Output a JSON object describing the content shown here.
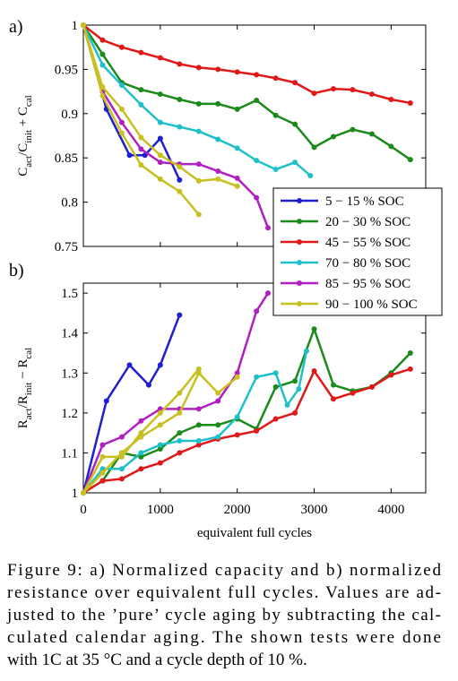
{
  "chart_data": [
    {
      "type": "line",
      "label": "a)",
      "ylabel": [
        "C",
        "act",
        "/C",
        "init",
        " + C",
        "cal"
      ],
      "xlim": [
        0,
        4450
      ],
      "xticks": [
        0,
        1000,
        2000,
        3000,
        4000
      ],
      "ylim": [
        0.75,
        1
      ],
      "yticks": [
        0.75,
        0.8,
        0.85,
        0.9,
        0.95,
        1
      ],
      "legend": true,
      "series": [
        {
          "name": "5 − 15 % SOC",
          "color": "#1f1fd0",
          "x": [
            0,
            300,
            600,
            800,
            1000,
            1250
          ],
          "values": [
            1,
            0.905,
            0.853,
            0.853,
            0.872,
            0.825
          ]
        },
        {
          "name": "20 − 30 % SOC",
          "color": "#1a8a1a",
          "x": [
            0,
            250,
            500,
            750,
            1000,
            1250,
            1500,
            1750,
            2000,
            2250,
            2500,
            2750,
            3000,
            3250,
            3500,
            3750,
            4000,
            4250
          ],
          "values": [
            1,
            0.967,
            0.935,
            0.927,
            0.922,
            0.916,
            0.911,
            0.911,
            0.905,
            0.915,
            0.898,
            0.888,
            0.862,
            0.874,
            0.882,
            0.877,
            0.863,
            0.848
          ]
        },
        {
          "name": "45 − 55 % SOC",
          "color": "#e01818",
          "x": [
            0,
            250,
            500,
            750,
            1000,
            1250,
            1500,
            1750,
            2000,
            2250,
            2500,
            2750,
            3000,
            3250,
            3500,
            3750,
            4000,
            4250
          ],
          "values": [
            1,
            0.983,
            0.975,
            0.969,
            0.963,
            0.956,
            0.952,
            0.95,
            0.947,
            0.944,
            0.94,
            0.935,
            0.923,
            0.928,
            0.927,
            0.922,
            0.916,
            0.912
          ]
        },
        {
          "name": "70 − 80 % SOC",
          "color": "#20c0c8",
          "x": [
            0,
            250,
            500,
            750,
            1000,
            1250,
            1500,
            1750,
            2000,
            2250,
            2500,
            2750,
            2950
          ],
          "values": [
            1,
            0.955,
            0.932,
            0.91,
            0.89,
            0.885,
            0.88,
            0.871,
            0.861,
            0.847,
            0.837,
            0.845,
            0.83
          ]
        },
        {
          "name": "85 − 95 % SOC",
          "color": "#b020c0",
          "x": [
            0,
            250,
            500,
            750,
            1000,
            1250,
            1500,
            1750,
            2000,
            2250,
            2400
          ],
          "values": [
            1,
            0.925,
            0.89,
            0.86,
            0.845,
            0.843,
            0.843,
            0.835,
            0.827,
            0.805,
            0.771
          ]
        },
        {
          "name": "90 − 100 % SOC",
          "color": "#c8c020",
          "x": [
            0,
            250,
            500,
            750,
            1000,
            1250,
            1500,
            1750,
            2000
          ],
          "values": [
            1,
            0.93,
            0.905,
            0.873,
            0.853,
            0.84,
            0.824,
            0.826,
            0.818
          ]
        },
        {
          "color": "#c8c020",
          "x": [
            0,
            250,
            500,
            750,
            1000,
            1250,
            1500
          ],
          "values": [
            1,
            0.92,
            0.878,
            0.842,
            0.826,
            0.812,
            0.786
          ]
        }
      ]
    },
    {
      "type": "line",
      "label": "b)",
      "ylabel": [
        "R",
        "act",
        "/R",
        "init",
        " − R",
        "cal"
      ],
      "xlabel": "equivalent full cycles",
      "xlim": [
        0,
        4450
      ],
      "xticks": [
        0,
        1000,
        2000,
        3000,
        4000
      ],
      "ylim": [
        1,
        1.525
      ],
      "yticks": [
        1,
        1.1,
        1.2,
        1.3,
        1.4,
        1.5
      ],
      "series": [
        {
          "color": "#1f1fd0",
          "x": [
            0,
            300,
            600,
            850,
            1000,
            1250
          ],
          "values": [
            1,
            1.23,
            1.32,
            1.27,
            1.32,
            1.445
          ]
        },
        {
          "color": "#1a8a1a",
          "x": [
            0,
            250,
            500,
            750,
            1000,
            1250,
            1500,
            1750,
            2000,
            2250,
            2500,
            2750,
            3000,
            3250,
            3500,
            3750,
            4000,
            4250
          ],
          "values": [
            1,
            1.03,
            1.1,
            1.09,
            1.11,
            1.15,
            1.17,
            1.17,
            1.185,
            1.16,
            1.265,
            1.28,
            1.41,
            1.27,
            1.255,
            1.265,
            1.3,
            1.35
          ]
        },
        {
          "color": "#e01818",
          "x": [
            0,
            250,
            500,
            750,
            1000,
            1250,
            1500,
            1750,
            2000,
            2250,
            2500,
            2750,
            3000,
            3250,
            3500,
            3750,
            4000,
            4250
          ],
          "values": [
            1,
            1.03,
            1.035,
            1.06,
            1.075,
            1.1,
            1.12,
            1.135,
            1.145,
            1.155,
            1.185,
            1.2,
            1.305,
            1.235,
            1.25,
            1.265,
            1.295,
            1.31
          ]
        },
        {
          "color": "#20c0c8",
          "x": [
            0,
            250,
            500,
            750,
            1000,
            1250,
            1500,
            1750,
            2000,
            2250,
            2500,
            2650,
            2800,
            2900
          ],
          "values": [
            1,
            1.06,
            1.06,
            1.1,
            1.12,
            1.13,
            1.13,
            1.14,
            1.19,
            1.29,
            1.3,
            1.22,
            1.26,
            1.355
          ]
        },
        {
          "color": "#b020c0",
          "x": [
            0,
            250,
            500,
            750,
            1000,
            1250,
            1500,
            1750,
            2000,
            2250,
            2400
          ],
          "values": [
            1,
            1.12,
            1.14,
            1.18,
            1.21,
            1.21,
            1.21,
            1.23,
            1.3,
            1.455,
            1.5
          ]
        },
        {
          "color": "#c8c020",
          "x": [
            0,
            250,
            500,
            750,
            1000,
            1250,
            1500,
            1750,
            2000
          ],
          "values": [
            1,
            1.05,
            1.1,
            1.14,
            1.17,
            1.2,
            1.3,
            1.25,
            1.29
          ]
        },
        {
          "color": "#c8c020",
          "x": [
            0,
            250,
            500,
            750,
            1000,
            1250,
            1500
          ],
          "values": [
            1,
            1.09,
            1.09,
            1.15,
            1.2,
            1.25,
            1.31
          ]
        }
      ]
    }
  ],
  "caption": {
    "lines": [
      "Figure 9: a) Normalized capacity and b) normalized",
      "resistance over equivalent full cycles. Values are ad-",
      "justed to the ’pure’ cycle aging by subtracting the cal-",
      "culated calendar aging. The shown tests were done",
      "with 1C at 35 °C and a cycle depth of 10 %."
    ]
  }
}
